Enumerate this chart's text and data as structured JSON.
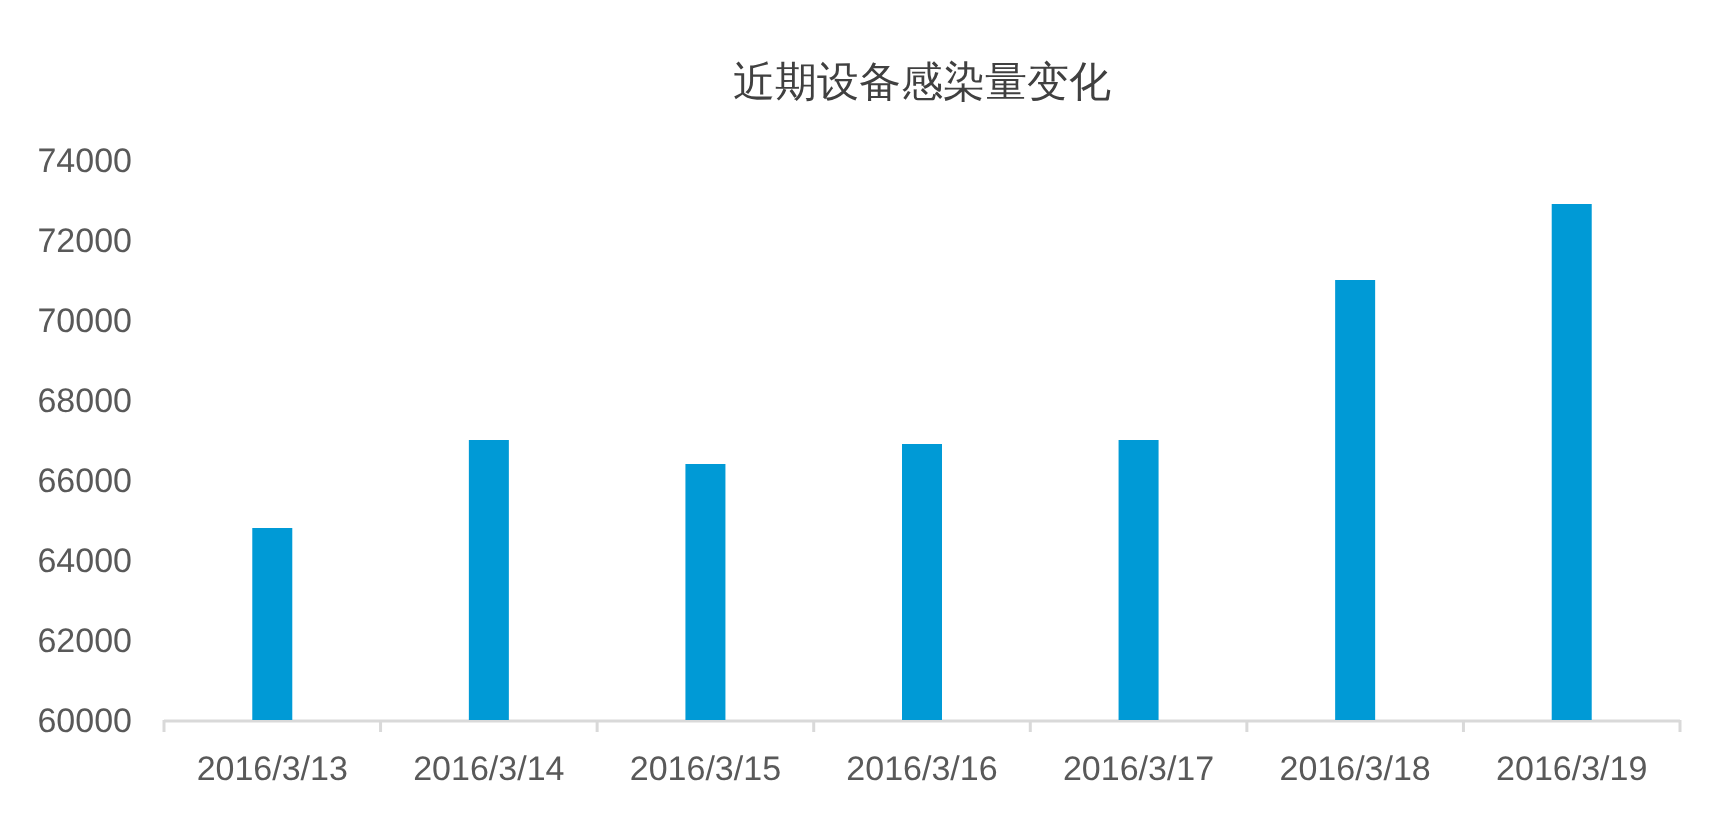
{
  "chart_data": {
    "type": "bar",
    "title": "近期设备感染量变化",
    "categories": [
      "2016/3/13",
      "2016/3/14",
      "2016/3/15",
      "2016/3/16",
      "2016/3/17",
      "2016/3/18",
      "2016/3/19"
    ],
    "values": [
      64800,
      67000,
      66400,
      66900,
      67000,
      71000,
      72900
    ],
    "color": "#009ad6",
    "ylim": [
      60000,
      74000
    ],
    "yticks": [
      60000,
      62000,
      64000,
      66000,
      68000,
      70000,
      72000,
      74000
    ]
  }
}
